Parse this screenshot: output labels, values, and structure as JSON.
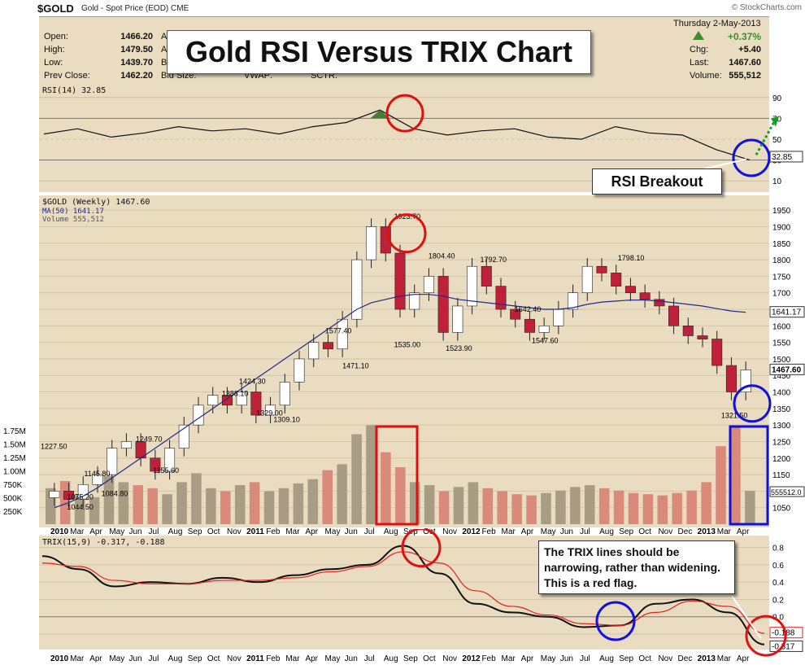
{
  "header": {
    "symbol": "$GOLD",
    "subtitle": "Gold - Spot Price (EOD)  CME",
    "logo": "© StockCharts.com"
  },
  "info": {
    "open_label": "Open:",
    "open": "1466.20",
    "high_label": "High:",
    "high": "1479.50",
    "low_label": "Low:",
    "low": "1439.70",
    "prev_label": "Prev Close:",
    "prev": "1462.20",
    "ask1": "As",
    "ask2": "As",
    "bid": "Bid",
    "bidsize": "Bid Size:",
    "vwap": "VWAP:",
    "sctr": "SCTR:",
    "date": "Thursday  2-May-2013",
    "change_pct": "+0.37%",
    "chg_label": "Chg:",
    "chg": "+5.40",
    "last_label": "Last:",
    "last": "1467.60",
    "volume_label": "Volume:",
    "volume": "555,512",
    "up_color": "#3a8f2a"
  },
  "title": "Gold RSI Versus TRIX Chart",
  "notes": {
    "rsi": "RSI Breakout",
    "trix": "The TRIX lines should be narrowing, rather than widening. This is a red flag."
  },
  "chart_data": [
    {
      "type": "line",
      "panel": "rsi",
      "legend": "RSI(14) 32.85",
      "y_ticks": [
        10,
        30,
        50,
        70,
        90
      ],
      "ylim": [
        0,
        100
      ],
      "last_value_label": "32.85",
      "x": [
        "2010-01",
        "2010-03",
        "2010-05",
        "2010-07",
        "2010-09",
        "2010-11",
        "2011-01",
        "2011-03",
        "2011-05",
        "2011-07",
        "2011-08",
        "2011-09",
        "2011-11",
        "2012-01",
        "2012-03",
        "2012-05",
        "2012-07",
        "2012-09",
        "2012-11",
        "2013-01",
        "2013-03",
        "2013-04"
      ],
      "values": [
        55,
        60,
        52,
        56,
        62,
        58,
        60,
        55,
        62,
        66,
        78,
        60,
        54,
        58,
        60,
        52,
        50,
        62,
        56,
        54,
        40,
        30
      ],
      "colors": {
        "line": "#111111",
        "fill": "#4a7a3a"
      }
    },
    {
      "type": "candlestick",
      "panel": "price",
      "legend": [
        "$GOLD (Weekly) 1467.60",
        "MA(50) 1641.17",
        "Volume 555,512"
      ],
      "y_ticks": [
        1050,
        1100,
        1150,
        1200,
        1250,
        1300,
        1350,
        1400,
        1450,
        1500,
        1550,
        1600,
        1650,
        1700,
        1750,
        1800,
        1850,
        1900,
        1950
      ],
      "ylim": [
        1000,
        1980
      ],
      "last_price_label": "1467.60",
      "ma_label": "1641.17",
      "price_series": [
        1100,
        1075,
        1120,
        1150,
        1230,
        1250,
        1200,
        1160,
        1230,
        1300,
        1360,
        1390,
        1360,
        1400,
        1330,
        1360,
        1430,
        1500,
        1550,
        1530,
        1620,
        1800,
        1900,
        1820,
        1650,
        1700,
        1750,
        1580,
        1660,
        1780,
        1720,
        1650,
        1620,
        1580,
        1600,
        1650,
        1700,
        1780,
        1760,
        1720,
        1700,
        1680,
        1660,
        1600,
        1570,
        1560,
        1480,
        1400,
        1467
      ],
      "ma_series": [
        1050,
        1065,
        1085,
        1110,
        1140,
        1170,
        1200,
        1230,
        1260,
        1290,
        1320,
        1350,
        1380,
        1410,
        1440,
        1470,
        1500,
        1530,
        1560,
        1590,
        1620,
        1650,
        1670,
        1680,
        1690,
        1695,
        1695,
        1690,
        1680,
        1675,
        1670,
        1665,
        1660,
        1655,
        1650,
        1650,
        1655,
        1665,
        1672,
        1675,
        1678,
        1678,
        1675,
        1670,
        1665,
        1660,
        1652,
        1645,
        1641
      ],
      "annotations": [
        {
          "label": "1227.50",
          "x": "2009-12",
          "value": 1227.5
        },
        {
          "label": "1075.20",
          "x": "2010-02",
          "value": 1075.2
        },
        {
          "label": "1044.50",
          "x": "2010-02",
          "value": 1044.5
        },
        {
          "label": "1145.80",
          "x": "2010-03",
          "value": 1145.8
        },
        {
          "label": "1084.80",
          "x": "2010-04",
          "value": 1084.8
        },
        {
          "label": "1249.70",
          "x": "2010-06",
          "value": 1249.7
        },
        {
          "label": "1155.60",
          "x": "2010-07",
          "value": 1155.6
        },
        {
          "label": "1388.10",
          "x": "2010-11",
          "value": 1388.1
        },
        {
          "label": "1424.30",
          "x": "2010-12",
          "value": 1424.3
        },
        {
          "label": "1329.00",
          "x": "2011-01",
          "value": 1329.0
        },
        {
          "label": "1309.10",
          "x": "2011-02",
          "value": 1309.1
        },
        {
          "label": "1577.40",
          "x": "2011-05",
          "value": 1577.4
        },
        {
          "label": "1471.10",
          "x": "2011-06",
          "value": 1471.1
        },
        {
          "label": "1923.70",
          "x": "2011-09",
          "value": 1923.7
        },
        {
          "label": "1535.00",
          "x": "2011-09",
          "value": 1535.0
        },
        {
          "label": "1804.40",
          "x": "2011-11",
          "value": 1804.4
        },
        {
          "label": "1523.90",
          "x": "2011-12",
          "value": 1523.9
        },
        {
          "label": "1792.70",
          "x": "2012-02",
          "value": 1792.7
        },
        {
          "label": "1642.40",
          "x": "2012-04",
          "value": 1642.4
        },
        {
          "label": "1547.60",
          "x": "2012-05",
          "value": 1547.6
        },
        {
          "label": "1798.10",
          "x": "2012-10",
          "value": 1798.1
        },
        {
          "label": "1321.50",
          "x": "2013-04",
          "value": 1321.5
        }
      ],
      "volume_axis_ticks": [
        "250K",
        "500K",
        "750K",
        "1.00M",
        "1.25M",
        "1.50M",
        "1.75M"
      ],
      "volume_last_label": "555512.0",
      "volume_series": [
        600,
        720,
        500,
        450,
        800,
        700,
        650,
        600,
        500,
        700,
        850,
        600,
        550,
        650,
        700,
        550,
        600,
        680,
        750,
        900,
        1000,
        1500,
        1650,
        1200,
        950,
        700,
        650,
        550,
        620,
        700,
        600,
        550,
        500,
        480,
        520,
        560,
        620,
        650,
        600,
        560,
        520,
        500,
        480,
        520,
        560,
        700,
        1300,
        1650,
        555
      ],
      "x_labels": [
        "2010",
        "Mar",
        "Apr",
        "May",
        "Jun",
        "Jul",
        "Aug",
        "Sep",
        "Oct",
        "Nov",
        "2011",
        "Feb",
        "Mar",
        "Apr",
        "May",
        "Jun",
        "Jul",
        "Aug",
        "Sep",
        "Oct",
        "Nov",
        "2012",
        "Feb",
        "Mar",
        "Apr",
        "May",
        "Jun",
        "Jul",
        "Aug",
        "Sep",
        "Oct",
        "Nov",
        "Dec",
        "2013",
        "Mar",
        "Apr"
      ],
      "colors": {
        "up": "#ffffff",
        "down": "#c0213a",
        "ma": "#1f2b8f",
        "volume_up": "#a89c84",
        "volume_down": "#d98a7a"
      }
    },
    {
      "type": "line",
      "panel": "trix",
      "legend": "TRIX(15,9) -0.317, -0.188",
      "y_ticks": [
        -0.2,
        0.0,
        0.2,
        0.4,
        0.6,
        0.8
      ],
      "ylim": [
        -0.36,
        0.9
      ],
      "last_trix_label": "-0.317",
      "last_signal_label": "-0.188",
      "x": [
        "2010-01",
        "2010-03",
        "2010-05",
        "2010-07",
        "2010-09",
        "2010-11",
        "2011-01",
        "2011-03",
        "2011-05",
        "2011-07",
        "2011-09",
        "2011-11",
        "2012-01",
        "2012-03",
        "2012-05",
        "2012-07",
        "2012-09",
        "2012-11",
        "2013-01",
        "2013-03",
        "2013-04"
      ],
      "series": [
        {
          "name": "TRIX(15,9)",
          "values": [
            0.7,
            0.55,
            0.35,
            0.4,
            0.38,
            0.45,
            0.4,
            0.48,
            0.55,
            0.6,
            0.82,
            0.5,
            0.15,
            0.05,
            0.0,
            -0.12,
            -0.1,
            0.15,
            0.2,
            0.05,
            -0.32
          ],
          "color": "#111111"
        },
        {
          "name": "Signal",
          "values": [
            0.62,
            0.58,
            0.42,
            0.38,
            0.38,
            0.42,
            0.42,
            0.45,
            0.52,
            0.58,
            0.75,
            0.62,
            0.3,
            0.12,
            0.02,
            -0.08,
            -0.1,
            0.05,
            0.18,
            0.12,
            -0.19
          ],
          "color": "#e02020"
        }
      ],
      "x_labels": [
        "2010",
        "Mar",
        "Apr",
        "May",
        "Jun",
        "Jul",
        "Aug",
        "Sep",
        "Oct",
        "Nov",
        "2011",
        "Feb",
        "Mar",
        "Apr",
        "May",
        "Jun",
        "Jul",
        "Aug",
        "Sep",
        "Oct",
        "Nov",
        "2012",
        "Feb",
        "Mar",
        "Apr",
        "May",
        "Jun",
        "Jul",
        "Aug",
        "Sep",
        "Oct",
        "Nov",
        "Dec",
        "2013",
        "Mar",
        "Apr"
      ]
    }
  ]
}
